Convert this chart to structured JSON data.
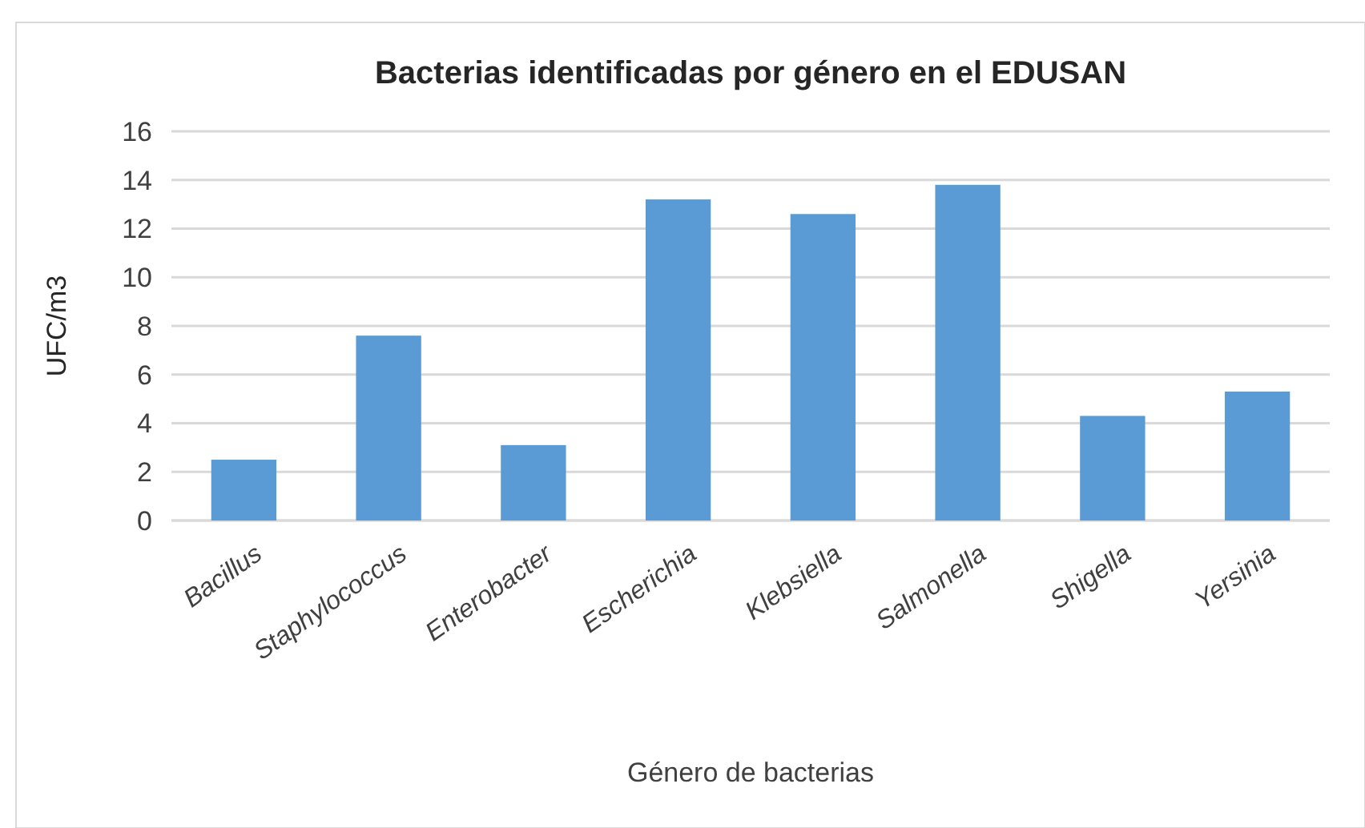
{
  "chart_data": {
    "type": "bar",
    "title": "Bacterias identificadas por género en el EDUSAN",
    "xlabel": "Género de bacterias",
    "ylabel": "UFC/m3",
    "categories": [
      "Bacillus",
      "Staphylococcus",
      "Enterobacter",
      "Escherichia",
      "Klebsiella",
      "Salmonella",
      "Shigella",
      "Yersinia"
    ],
    "values": [
      2.5,
      7.6,
      3.1,
      13.2,
      12.6,
      13.8,
      4.3,
      5.3
    ],
    "color": "#5b9bd5",
    "ylim": [
      0,
      16
    ],
    "yticks": [
      0,
      2,
      4,
      6,
      8,
      10,
      12,
      14,
      16
    ],
    "grid": "y"
  }
}
